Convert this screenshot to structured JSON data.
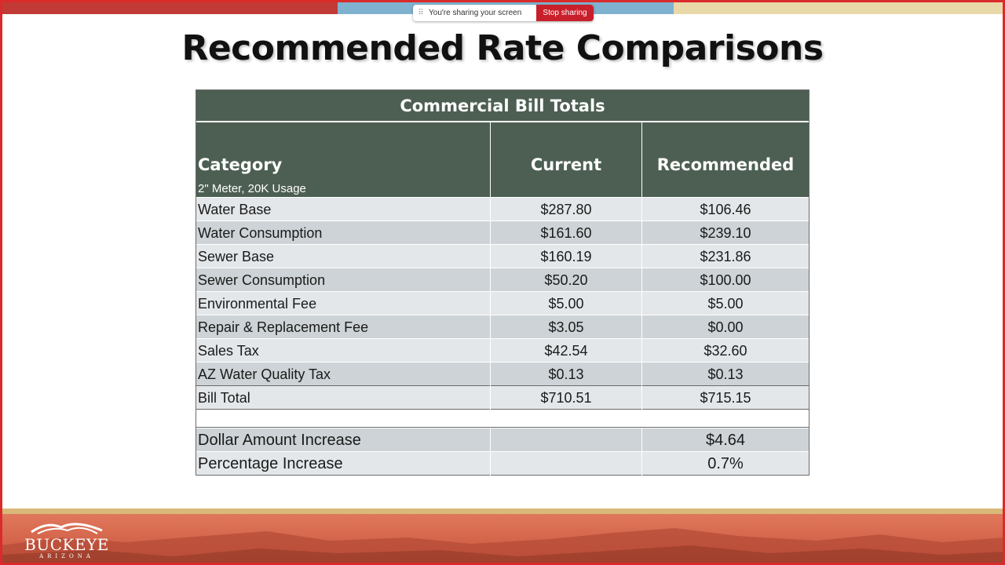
{
  "screen_share": {
    "grip_icon": "drag-grip-icon",
    "message": "You're sharing your screen",
    "stop_label": "Stop sharing"
  },
  "slide": {
    "title": "Recommended Rate Comparisons",
    "table": {
      "heading": "Commercial Bill Totals",
      "columns": {
        "category": "Category",
        "category_note": "2\" Meter, 20K Usage",
        "current": "Current",
        "recommended": "Recommended"
      },
      "rows": [
        {
          "category": "Water Base",
          "current": "$287.80",
          "recommended": "$106.46"
        },
        {
          "category": "Water Consumption",
          "current": "$161.60",
          "recommended": "$239.10"
        },
        {
          "category": "Sewer Base",
          "current": "$160.19",
          "recommended": "$231.86"
        },
        {
          "category": "Sewer Consumption",
          "current": "$50.20",
          "recommended": "$100.00"
        },
        {
          "category": "Environmental Fee",
          "current": "$5.00",
          "recommended": "$5.00"
        },
        {
          "category": "Repair & Replacement Fee",
          "current": "$3.05",
          "recommended": "$0.00"
        },
        {
          "category": "Sales Tax",
          "current": "$42.54",
          "recommended": "$32.60"
        },
        {
          "category": "AZ Water Quality Tax",
          "current": "$0.13",
          "recommended": "$0.13"
        }
      ],
      "total": {
        "category": "Bill Total",
        "current": "$710.51",
        "recommended": "$715.15"
      },
      "summary": [
        {
          "category": "Dollar Amount Increase",
          "current": "",
          "recommended": "$4.64"
        },
        {
          "category": "Percentage Increase",
          "current": "",
          "recommended": "0.7%"
        }
      ]
    },
    "logo": {
      "name": "BUCKEYE",
      "state": "ARIZONA"
    }
  },
  "colors": {
    "header_green": "#4d5f53",
    "row_light": "#e3e7ea",
    "row_dark": "#cdd3d6",
    "stop_red": "#c8202b",
    "frame_red": "#d92b2b"
  }
}
